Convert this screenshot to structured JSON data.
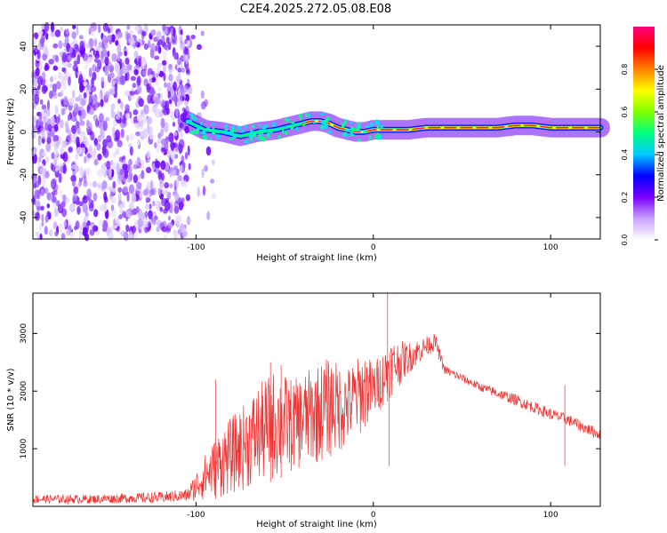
{
  "title": "C2E4.2025.272.05.08.E08",
  "chart_data": [
    {
      "type": "heatmap",
      "xlabel": "Height of straight line (km)",
      "ylabel": "Frequency (Hz)",
      "xlim": [
        -192,
        128
      ],
      "ylim": [
        -50,
        50
      ],
      "xticks": [
        -100,
        0,
        100
      ],
      "yticks": [
        -40,
        -20,
        0,
        20,
        40
      ],
      "noise_region_x": [
        -192,
        -105
      ],
      "signal_track": {
        "x": [
          -105,
          -95,
          -85,
          -75,
          -65,
          -55,
          -45,
          -40,
          -35,
          -30,
          -25,
          -20,
          -15,
          -10,
          -5,
          0,
          10,
          20,
          30,
          40,
          50,
          60,
          70,
          80,
          90,
          100,
          110,
          120,
          128
        ],
        "freq": [
          5,
          1,
          0,
          -2,
          0,
          1,
          3,
          4,
          5,
          5,
          4,
          2,
          1,
          0,
          0,
          1,
          1,
          1,
          2,
          2,
          2,
          2,
          2,
          3,
          3,
          2,
          2,
          2,
          2
        ]
      },
      "colorbar": {
        "label": "Normalized spectral amplitude",
        "range": [
          0.0,
          1.0
        ],
        "ticks": [
          "0.0",
          "0.2",
          "0.4",
          "0.6",
          "0.8"
        ],
        "colors": [
          "#ffffff",
          "#c8a2ff",
          "#7b00ff",
          "#0000ff",
          "#00c8ff",
          "#00ff80",
          "#80ff00",
          "#ffff00",
          "#ff8000",
          "#ff0000",
          "#ff0080"
        ]
      }
    },
    {
      "type": "line",
      "xlabel": "Height of straight line (km)",
      "ylabel": "SNR (10 * v/v)",
      "xlim": [
        -192,
        128
      ],
      "ylim": [
        0,
        3700
      ],
      "xticks": [
        -100,
        0,
        100
      ],
      "yticks": [
        1000,
        2000,
        3000
      ],
      "line_color": "#ee3333",
      "envelope": {
        "x": [
          -192,
          -160,
          -120,
          -105,
          -95,
          -85,
          -75,
          -65,
          -55,
          -45,
          -35,
          -25,
          -15,
          -5,
          0,
          10,
          20,
          30,
          35,
          40,
          60,
          80,
          100,
          110,
          120,
          128
        ],
        "low": [
          50,
          50,
          60,
          80,
          100,
          150,
          250,
          350,
          450,
          600,
          700,
          800,
          1000,
          1300,
          1500,
          1900,
          2300,
          2600,
          2700,
          2300,
          2000,
          1750,
          1500,
          1400,
          1250,
          1150
        ],
        "high": [
          200,
          200,
          250,
          300,
          900,
          1400,
          1700,
          2100,
          2400,
          2200,
          2400,
          2600,
          2400,
          2700,
          2500,
          2900,
          2850,
          2950,
          3000,
          2450,
          2150,
          1950,
          1700,
          1600,
          1450,
          1350
        ]
      },
      "spikes": [
        {
          "x": -89,
          "y": 2200
        },
        {
          "x": -58,
          "y": 2500
        },
        {
          "x": -52,
          "y": 2450
        },
        {
          "x": 8,
          "y": 3700
        },
        {
          "x": 9,
          "y": 700
        },
        {
          "x": 108,
          "y": 2100
        },
        {
          "x": 108,
          "y": 700
        }
      ]
    }
  ]
}
